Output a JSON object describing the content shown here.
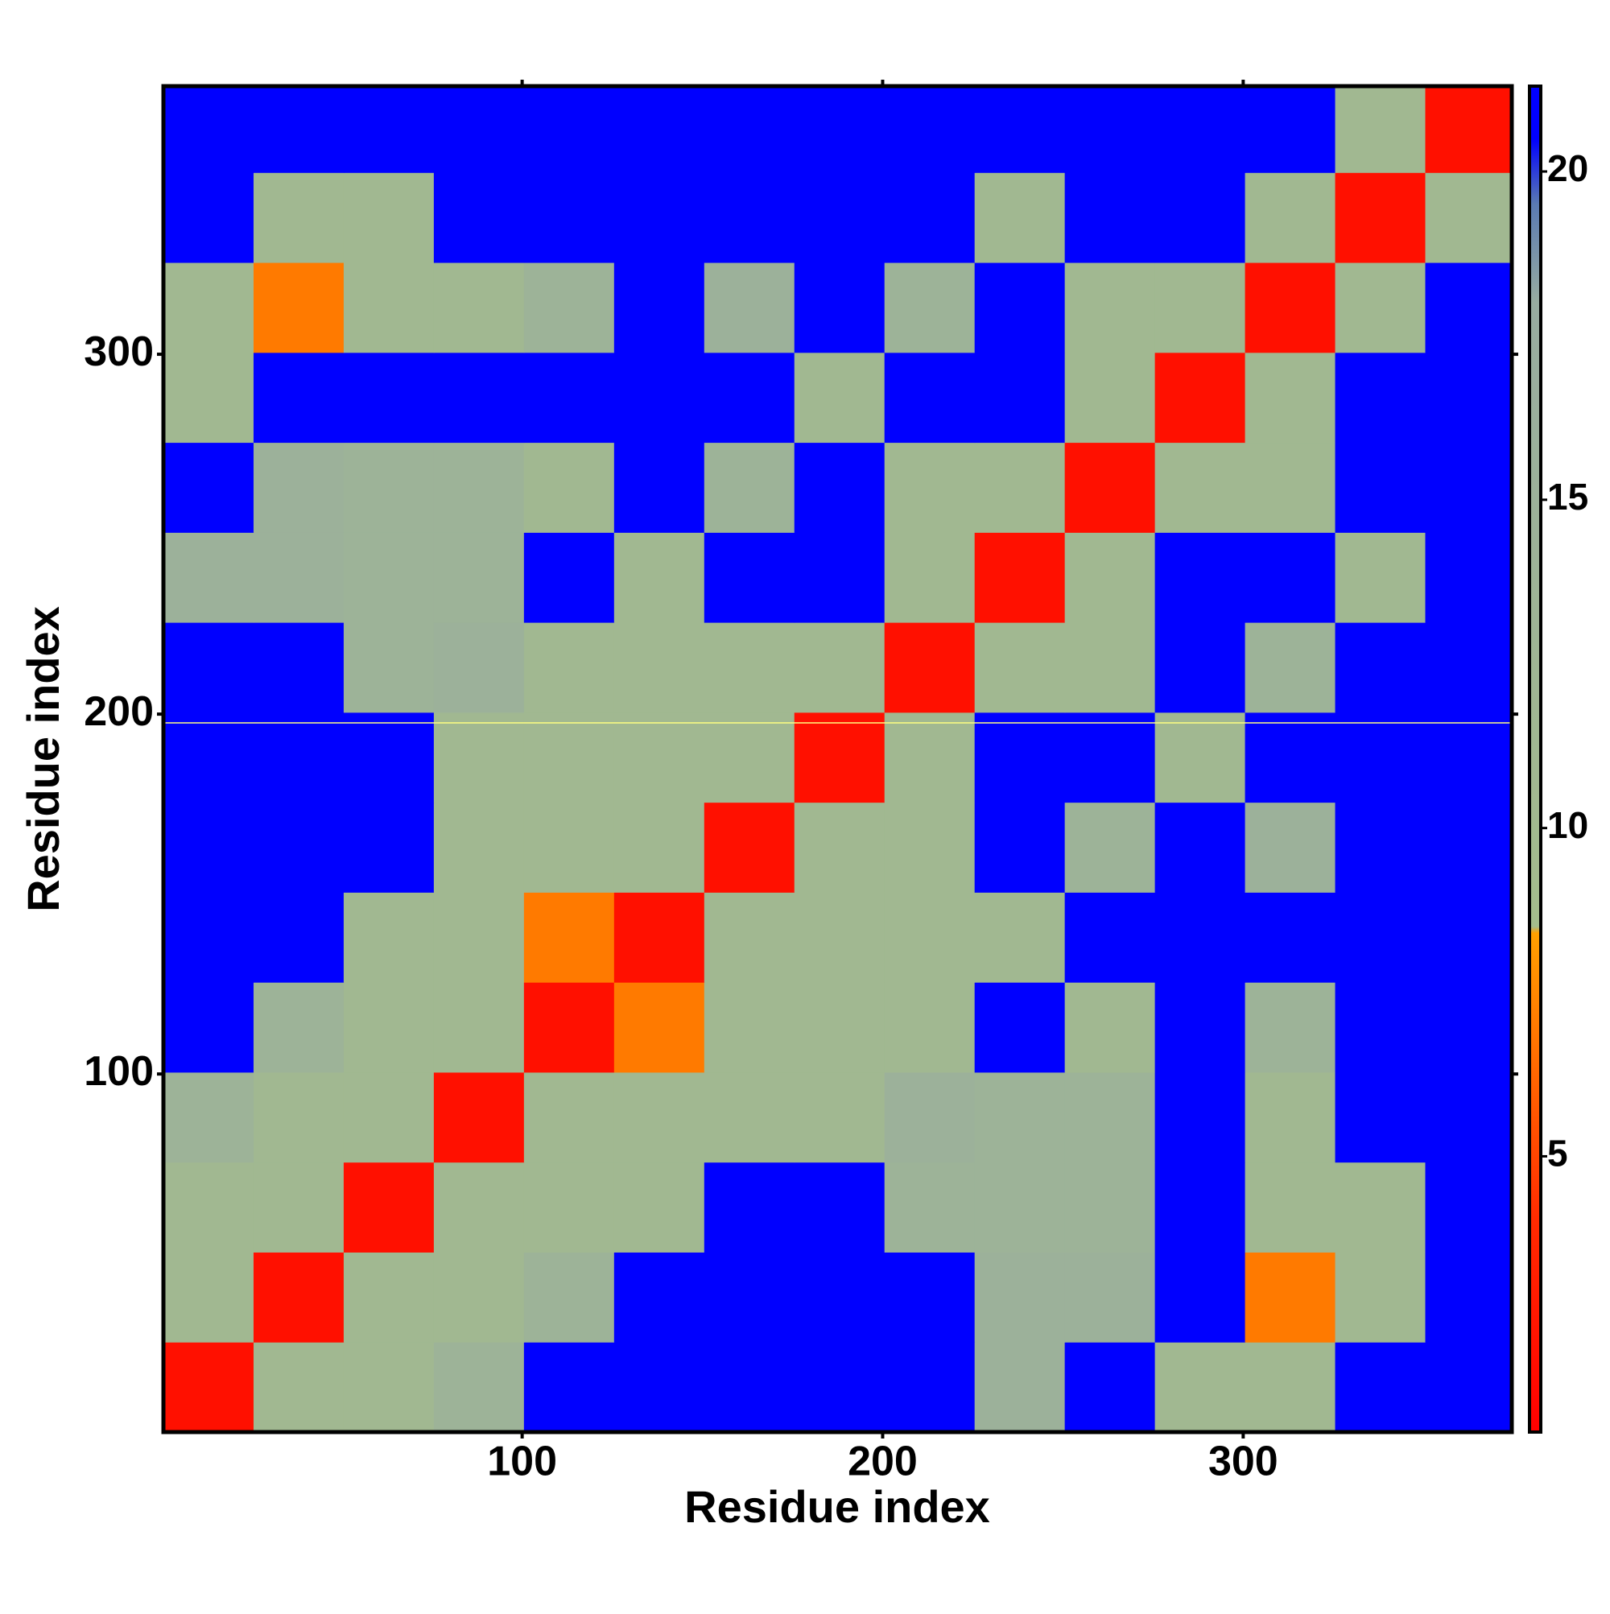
{
  "chart_data": {
    "type": "heatmap",
    "xlabel": "Residue index",
    "ylabel": "Residue index",
    "xlim": [
      0.5,
      374.5
    ],
    "ylim": [
      0.5,
      374.5
    ],
    "xticks": [
      100,
      200,
      300
    ],
    "yticks": [
      100,
      200,
      300
    ],
    "bins": [
      0.5,
      25.5,
      50.5,
      75.5,
      100.5,
      125.5,
      150.5,
      175.5,
      200.5,
      225.5,
      250.5,
      275.5,
      300.5,
      325.5,
      350.5,
      375.5
    ],
    "z": [
      [
        2,
        11,
        11,
        14,
        21,
        21,
        21,
        21,
        21,
        15,
        21,
        11,
        11,
        21,
        21
      ],
      [
        11,
        2,
        11,
        11,
        14,
        21,
        21,
        21,
        21,
        15,
        15,
        21,
        7,
        11,
        21
      ],
      [
        11,
        11,
        2,
        11,
        11,
        11,
        21,
        21,
        14,
        14,
        14,
        21,
        11,
        11,
        21
      ],
      [
        14,
        11,
        11,
        2,
        11,
        11,
        11,
        11,
        15,
        14,
        14,
        21,
        11,
        21,
        21
      ],
      [
        21,
        14,
        11,
        11,
        2,
        7,
        11,
        11,
        11,
        21,
        11,
        21,
        14,
        21,
        21
      ],
      [
        21,
        21,
        11,
        11,
        7,
        2,
        11,
        11,
        11,
        11,
        21,
        21,
        21,
        21,
        21
      ],
      [
        21,
        21,
        21,
        11,
        11,
        11,
        2,
        11,
        11,
        21,
        14,
        21,
        15,
        21,
        21
      ],
      [
        21,
        21,
        21,
        11,
        11,
        11,
        11,
        2,
        11,
        21,
        21,
        11,
        21,
        21,
        21
      ],
      [
        21,
        21,
        14,
        15,
        11,
        11,
        11,
        11,
        2,
        11,
        11,
        21,
        14,
        21,
        21
      ],
      [
        15,
        15,
        14,
        14,
        21,
        11,
        21,
        21,
        11,
        2,
        11,
        21,
        21,
        11,
        21
      ],
      [
        21,
        15,
        14,
        14,
        11,
        21,
        14,
        21,
        11,
        11,
        2,
        11,
        11,
        21,
        21
      ],
      [
        11,
        21,
        21,
        21,
        21,
        21,
        21,
        11,
        21,
        21,
        11,
        2,
        11,
        21,
        21
      ],
      [
        11,
        7,
        11,
        11,
        14,
        21,
        15,
        21,
        14,
        21,
        11,
        11,
        2,
        11,
        21
      ],
      [
        21,
        11,
        11,
        21,
        21,
        21,
        21,
        21,
        21,
        11,
        21,
        21,
        11,
        2,
        11
      ],
      [
        21,
        21,
        21,
        21,
        21,
        21,
        21,
        21,
        21,
        21,
        21,
        21,
        21,
        11,
        2
      ]
    ],
    "zlim": [
      0.8,
      21.3
    ],
    "zticks": [
      5,
      10,
      15,
      20
    ],
    "colorscale": [
      [
        0.8,
        "#ff0000"
      ],
      [
        4,
        "#ff2a00"
      ],
      [
        8.4,
        "#ffa000"
      ],
      [
        8.5,
        "#a4bc8c"
      ],
      [
        18,
        "#98aca0"
      ],
      [
        19.5,
        "#5a7ab2"
      ],
      [
        20.5,
        "#0000ff"
      ],
      [
        21.3,
        "#0000ff"
      ]
    ]
  }
}
